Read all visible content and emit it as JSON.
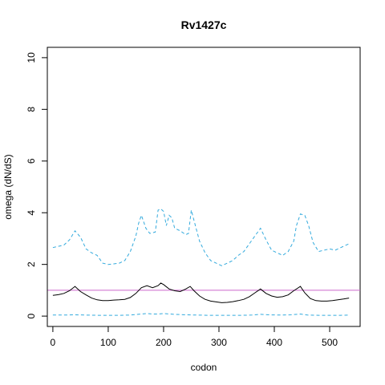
{
  "chart_data": {
    "type": "line",
    "title": "Rv1427c",
    "xlabel": "codon",
    "ylabel": "omega (dN/dS)",
    "xlim": [
      -10,
      555
    ],
    "ylim": [
      -0.4,
      10.4
    ],
    "xticks": [
      0,
      100,
      200,
      300,
      400,
      500
    ],
    "yticks": [
      0,
      2,
      4,
      6,
      8,
      10
    ],
    "grid": false,
    "reference_line": {
      "y": 1,
      "color": "#cc66cc"
    },
    "series": [
      {
        "style": "solid",
        "color": "#000000",
        "x": [
          0,
          10,
          20,
          30,
          40,
          50,
          60,
          70,
          80,
          90,
          100,
          110,
          120,
          130,
          140,
          150,
          160,
          170,
          180,
          190,
          195,
          200,
          210,
          220,
          230,
          240,
          248,
          255,
          265,
          275,
          285,
          295,
          305,
          315,
          325,
          335,
          345,
          355,
          365,
          375,
          385,
          395,
          405,
          415,
          425,
          435,
          447,
          455,
          465,
          475,
          485,
          495,
          505,
          515,
          525,
          535
        ],
        "y": [
          0.8,
          0.83,
          0.88,
          0.98,
          1.15,
          0.95,
          0.82,
          0.7,
          0.63,
          0.6,
          0.6,
          0.62,
          0.63,
          0.65,
          0.72,
          0.88,
          1.1,
          1.18,
          1.1,
          1.18,
          1.28,
          1.22,
          1.05,
          0.98,
          0.95,
          1.05,
          1.15,
          0.98,
          0.78,
          0.65,
          0.58,
          0.55,
          0.52,
          0.53,
          0.56,
          0.6,
          0.65,
          0.75,
          0.9,
          1.05,
          0.88,
          0.78,
          0.73,
          0.75,
          0.82,
          0.98,
          1.15,
          0.9,
          0.68,
          0.6,
          0.58,
          0.58,
          0.6,
          0.63,
          0.66,
          0.7
        ]
      },
      {
        "style": "dashed",
        "color": "#33aadd",
        "x": [
          0,
          10,
          20,
          30,
          40,
          50,
          60,
          70,
          80,
          90,
          100,
          110,
          120,
          130,
          140,
          150,
          155,
          160,
          168,
          175,
          185,
          190,
          195,
          200,
          205,
          210,
          215,
          220,
          230,
          240,
          245,
          250,
          255,
          265,
          275,
          285,
          295,
          305,
          315,
          325,
          335,
          345,
          355,
          365,
          375,
          385,
          395,
          405,
          415,
          425,
          435,
          440,
          447,
          455,
          462,
          470,
          480,
          490,
          500,
          510,
          520,
          535
        ],
        "y": [
          2.65,
          2.7,
          2.75,
          2.95,
          3.3,
          3.05,
          2.6,
          2.45,
          2.35,
          2.05,
          2.0,
          2.02,
          2.05,
          2.15,
          2.5,
          3.1,
          3.6,
          3.9,
          3.4,
          3.2,
          3.25,
          4.1,
          4.15,
          4.05,
          3.5,
          3.9,
          3.8,
          3.4,
          3.3,
          3.15,
          3.2,
          4.1,
          3.7,
          2.9,
          2.45,
          2.15,
          2.05,
          1.95,
          2.05,
          2.15,
          2.35,
          2.5,
          2.8,
          3.1,
          3.4,
          2.95,
          2.55,
          2.45,
          2.35,
          2.5,
          2.9,
          3.5,
          3.95,
          3.9,
          3.5,
          2.85,
          2.5,
          2.55,
          2.6,
          2.55,
          2.65,
          2.8
        ]
      },
      {
        "style": "dashed",
        "color": "#33aadd",
        "x": [
          0,
          20,
          40,
          60,
          80,
          100,
          120,
          140,
          160,
          170,
          180,
          190,
          200,
          220,
          240,
          260,
          280,
          300,
          320,
          340,
          360,
          375,
          390,
          410,
          430,
          447,
          460,
          480,
          500,
          520,
          535
        ],
        "y": [
          0.04,
          0.04,
          0.05,
          0.04,
          0.03,
          0.03,
          0.03,
          0.04,
          0.08,
          0.1,
          0.08,
          0.08,
          0.1,
          0.07,
          0.05,
          0.04,
          0.03,
          0.03,
          0.03,
          0.03,
          0.04,
          0.07,
          0.05,
          0.04,
          0.05,
          0.08,
          0.04,
          0.03,
          0.03,
          0.03,
          0.04
        ]
      }
    ]
  }
}
